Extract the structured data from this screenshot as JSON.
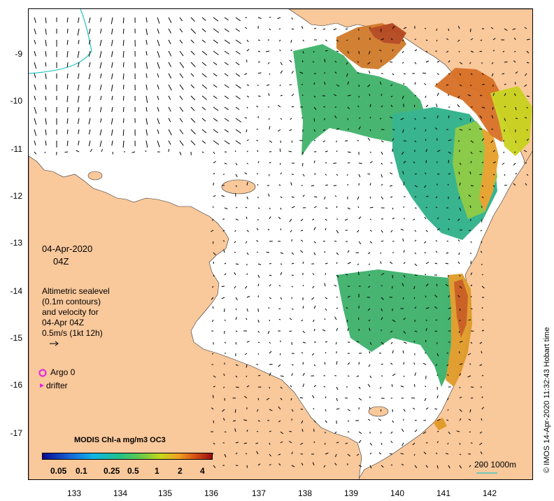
{
  "map": {
    "date_label": "04-Apr-2020",
    "time_label": "04Z",
    "legend_lines": [
      "Altimetric sealevel",
      "(0.1m contours)",
      "and velocity for",
      "04-Apr 04Z",
      "0.5m/s (1kt 12h)"
    ],
    "argo_label": "Argo 0",
    "drifter_label": "drifter",
    "colorbar_title": "MODIS Chl-a mg/m3 OC3",
    "colorbar_ticks": [
      "0.05",
      "0.1",
      "0.25",
      "0.5",
      "1",
      "2",
      "4"
    ],
    "depth_legend": "200  1000m",
    "copyright": "© IMOS 14-Apr-2020 11:32:43 Hobart time",
    "y_ticks": [
      "-9",
      "-10",
      "-11",
      "-12",
      "-13",
      "-14",
      "-15",
      "-16",
      "-17"
    ],
    "x_ticks": [
      "133",
      "134",
      "135",
      "136",
      "137",
      "138",
      "139",
      "140",
      "141",
      "142"
    ],
    "colors": {
      "land": "#f9c89b",
      "ocean": "#ffffff",
      "argo": "#e020e0",
      "depth_contour": "#22c3c3",
      "colorbar_low": "#0a0a90",
      "colorbar_high": "#9a0d0d"
    }
  }
}
